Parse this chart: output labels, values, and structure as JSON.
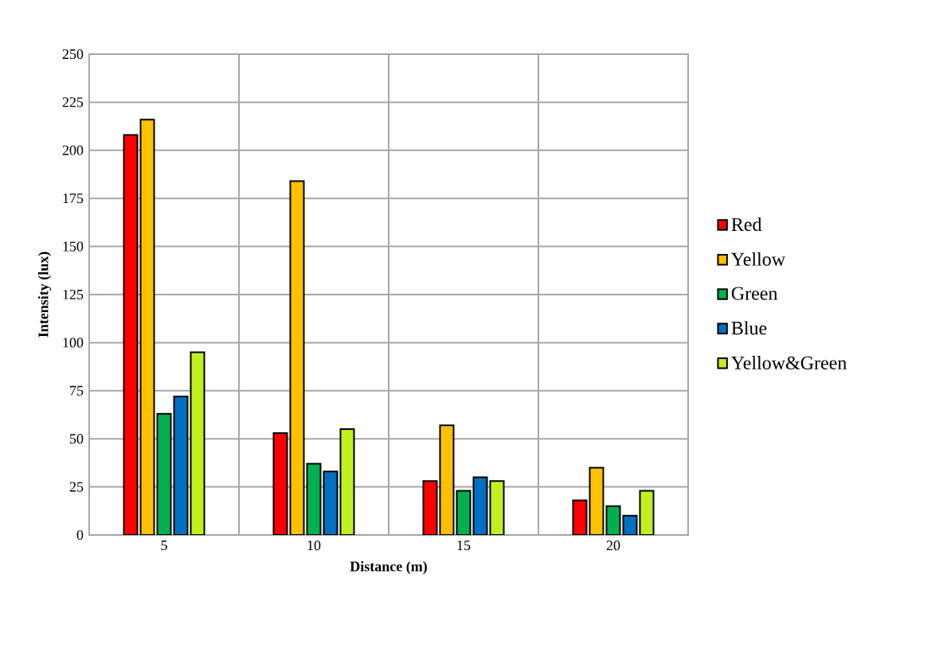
{
  "chart_data": {
    "type": "bar",
    "xlabel": "Distance  (m)",
    "ylabel": "Intensity (lux)",
    "categories": [
      "5",
      "10",
      "15",
      "20"
    ],
    "series": [
      {
        "name": "Red",
        "color": "#ff0000",
        "values": [
          208,
          53,
          28,
          18
        ]
      },
      {
        "name": "Yellow",
        "color": "#ffc000",
        "values": [
          216,
          184,
          57,
          35
        ]
      },
      {
        "name": "Green",
        "color": "#00b050",
        "values": [
          63,
          37,
          23,
          15
        ]
      },
      {
        "name": "Blue",
        "color": "#0070c0",
        "values": [
          72,
          33,
          30,
          10
        ]
      },
      {
        "name": "Yellow&Green",
        "color": "#c0f020",
        "values": [
          95,
          55,
          28,
          23
        ]
      }
    ],
    "ylim": [
      0,
      250
    ],
    "yticks": [
      0,
      25,
      50,
      75,
      100,
      125,
      150,
      175,
      200,
      225,
      250
    ],
    "grid": true,
    "legend": "right"
  }
}
